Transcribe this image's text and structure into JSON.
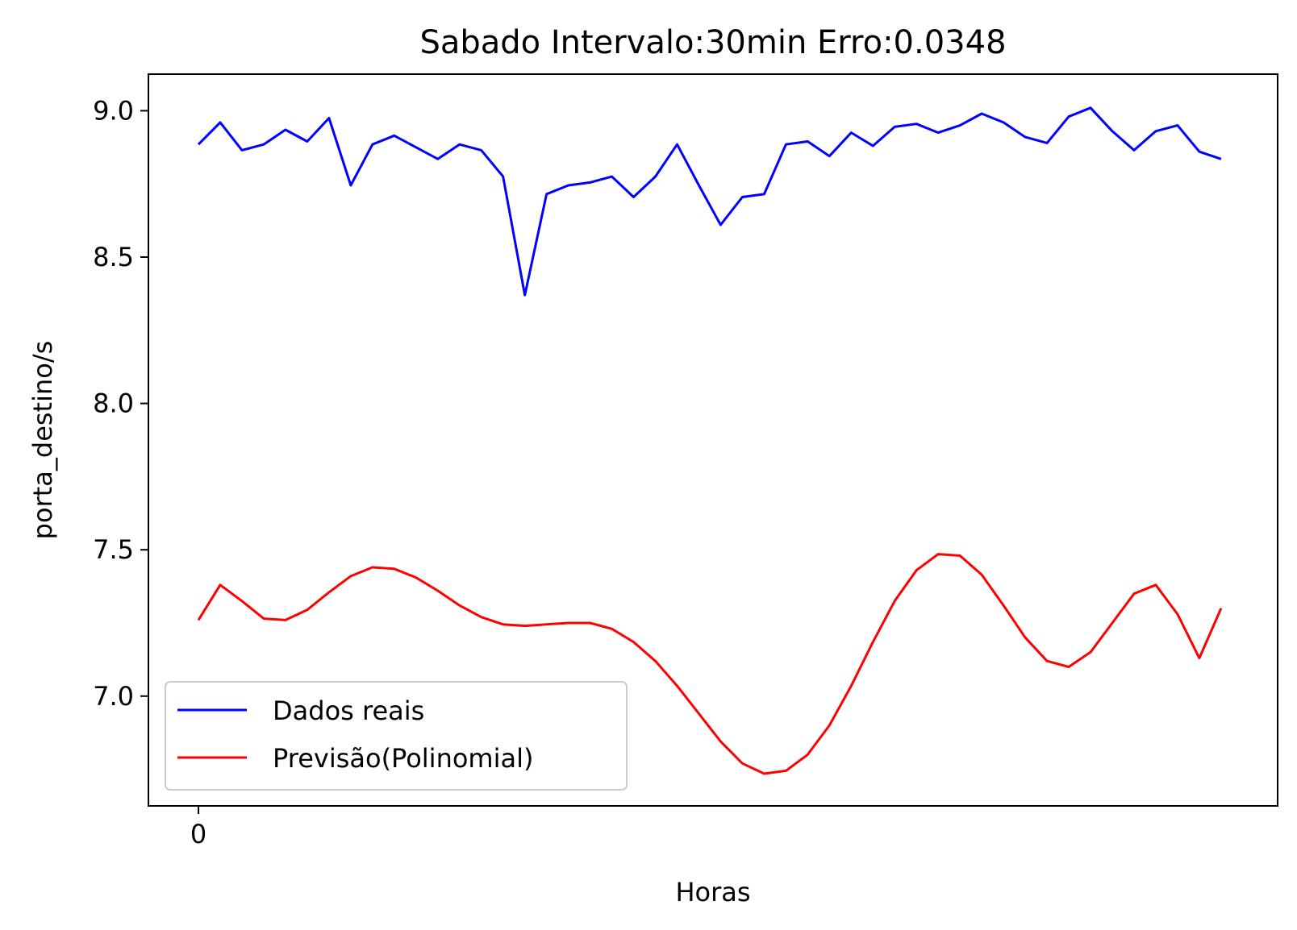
{
  "chart_data": {
    "type": "line",
    "title": "Sabado Intervalo:30min Erro:0.0348",
    "xlabel": "Horas",
    "ylabel": "porta_destino/s",
    "x": [
      0,
      1,
      2,
      3,
      4,
      5,
      6,
      7,
      8,
      9,
      10,
      11,
      12,
      13,
      14,
      15,
      16,
      17,
      18,
      19,
      20,
      21,
      22,
      23,
      24,
      25,
      26,
      27,
      28,
      29,
      30,
      31,
      32,
      33,
      34,
      35,
      36,
      37,
      38,
      39,
      40,
      41,
      42,
      43,
      44,
      45,
      46,
      47
    ],
    "xlim": [
      -2.3,
      49.6
    ],
    "ylim": [
      6.625,
      9.125
    ],
    "xticks": [
      0
    ],
    "xtick_labels": [
      "0"
    ],
    "yticks": [
      7.0,
      7.5,
      8.0,
      8.5,
      9.0
    ],
    "ytick_labels": [
      "7.0",
      "7.5",
      "8.0",
      "8.5",
      "9.0"
    ],
    "grid": false,
    "legend_position": "lower-left",
    "series": [
      {
        "name": "Dados reais",
        "color": "#0000ff",
        "values": [
          8.885,
          8.96,
          8.865,
          8.885,
          8.935,
          8.895,
          8.975,
          8.745,
          8.885,
          8.915,
          8.875,
          8.835,
          8.885,
          8.865,
          8.775,
          8.37,
          8.715,
          8.745,
          8.755,
          8.775,
          8.705,
          8.775,
          8.885,
          8.745,
          8.61,
          8.705,
          8.715,
          8.885,
          8.895,
          8.845,
          8.925,
          8.88,
          8.945,
          8.955,
          8.925,
          8.95,
          8.99,
          8.96,
          8.91,
          8.89,
          8.98,
          9.01,
          8.93,
          8.865,
          8.93,
          8.95,
          8.86,
          8.835
        ]
      },
      {
        "name": "Previsão(Polinomial)",
        "color": "#ff0000",
        "values": [
          7.26,
          7.38,
          7.325,
          7.265,
          7.26,
          7.295,
          7.355,
          7.41,
          7.44,
          7.435,
          7.405,
          7.36,
          7.31,
          7.27,
          7.245,
          7.24,
          7.245,
          7.25,
          7.25,
          7.23,
          7.185,
          7.12,
          7.035,
          6.94,
          6.845,
          6.77,
          6.735,
          6.745,
          6.8,
          6.9,
          7.035,
          7.185,
          7.325,
          7.43,
          7.485,
          7.48,
          7.415,
          7.31,
          7.2,
          7.12,
          7.1,
          7.15,
          7.25,
          7.35,
          7.38,
          7.28,
          7.13,
          7.3
        ]
      }
    ]
  }
}
